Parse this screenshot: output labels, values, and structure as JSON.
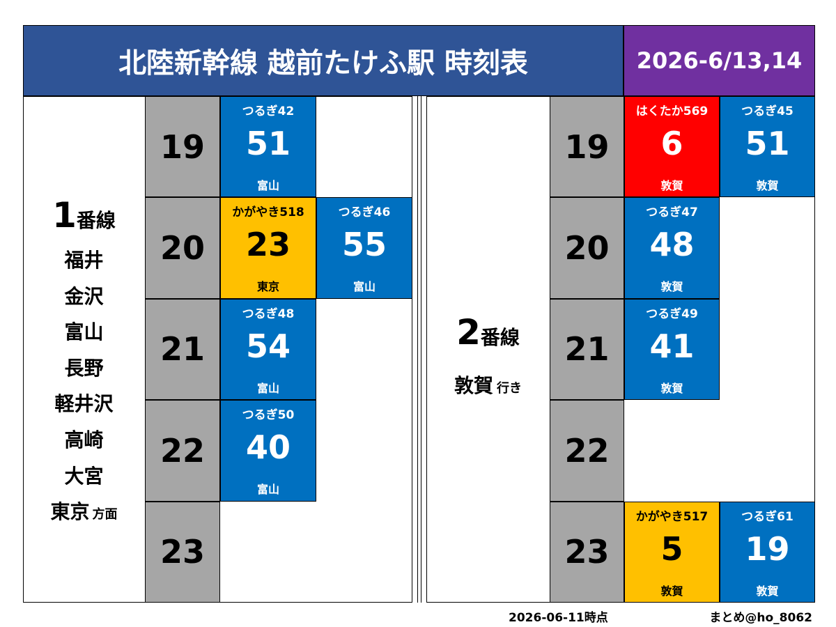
{
  "header": {
    "title": "北陸新幹線 越前たけふ駅 時刻表",
    "date": "2026-6/13,14"
  },
  "platforms": [
    {
      "number": "1",
      "suffix": "番線",
      "destinations": [
        "福井",
        "金沢",
        "富山",
        "長野",
        "軽井沢",
        "高崎",
        "大宮",
        "東京"
      ],
      "direction": "方面",
      "rows": [
        {
          "hour": 19,
          "trains": [
            {
              "name": "つるぎ42",
              "minute": 51,
              "dest": "富山",
              "color": "#0070c0"
            }
          ]
        },
        {
          "hour": 20,
          "trains": [
            {
              "name": "かがやき518",
              "minute": 23,
              "dest": "東京",
              "color": "#ffc000"
            },
            {
              "name": "つるぎ46",
              "minute": 55,
              "dest": "富山",
              "color": "#0070c0"
            }
          ]
        },
        {
          "hour": 21,
          "trains": [
            {
              "name": "つるぎ48",
              "minute": 54,
              "dest": "富山",
              "color": "#0070c0"
            }
          ]
        },
        {
          "hour": 22,
          "trains": [
            {
              "name": "つるぎ50",
              "minute": 40,
              "dest": "富山",
              "color": "#0070c0"
            }
          ]
        },
        {
          "hour": 23,
          "trains": []
        }
      ]
    },
    {
      "number": "2",
      "suffix": "番線",
      "destinations": [
        "敦賀"
      ],
      "direction": "行き",
      "rows": [
        {
          "hour": 19,
          "trains": [
            {
              "name": "はくたか569",
              "minute": 6,
              "dest": "敦賀",
              "color": "#ff0000"
            },
            {
              "name": "つるぎ45",
              "minute": 51,
              "dest": "敦賀",
              "color": "#0070c0"
            }
          ]
        },
        {
          "hour": 20,
          "trains": [
            {
              "name": "つるぎ47",
              "minute": 48,
              "dest": "敦賀",
              "color": "#0070c0"
            }
          ]
        },
        {
          "hour": 21,
          "trains": [
            {
              "name": "つるぎ49",
              "minute": 41,
              "dest": "敦賀",
              "color": "#0070c0"
            }
          ]
        },
        {
          "hour": 22,
          "trains": []
        },
        {
          "hour": 23,
          "trains": [
            {
              "name": "かがやき517",
              "minute": 5,
              "dest": "敦賀",
              "color": "#ffc000"
            },
            {
              "name": "つるぎ61",
              "minute": 19,
              "dest": "敦賀",
              "color": "#0070c0"
            }
          ]
        }
      ]
    }
  ],
  "footer": {
    "as_of": "2026-06-11時点",
    "credit": "まとめ@ho_8062"
  }
}
